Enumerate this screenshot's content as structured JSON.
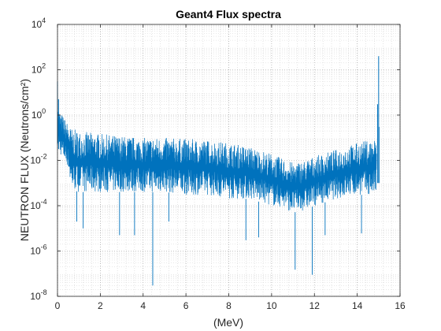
{
  "chart_data": {
    "type": "line",
    "title": "Geant4 Flux spectra",
    "xlabel": "(MeV)",
    "ylabel": "NEUTRON FLUX (Neutrons/cm²)",
    "xlim": [
      0,
      16
    ],
    "ylim": [
      1e-08,
      10000
    ],
    "yscale": "log",
    "grid": "major and minor (dotted)",
    "series_color": "#0072BD",
    "x_ticks": [
      0,
      2,
      4,
      6,
      8,
      10,
      12,
      14,
      16
    ],
    "y_tick_exponents": [
      -8,
      -6,
      -4,
      -2,
      0,
      2,
      4
    ],
    "envelope": {
      "x": [
        0.0,
        0.1,
        0.3,
        0.5,
        0.6,
        0.7,
        1.0,
        2.0,
        3.0,
        4.0,
        5.0,
        6.0,
        7.0,
        8.0,
        9.0,
        10.0,
        10.5,
        11.0,
        11.5,
        12.0,
        13.0,
        14.0,
        14.5,
        14.9
      ],
      "upper": [
        3,
        1.5,
        0.8,
        0.4,
        0.3,
        0.25,
        0.2,
        0.15,
        0.12,
        0.1,
        0.1,
        0.09,
        0.08,
        0.06,
        0.04,
        0.02,
        0.012,
        0.008,
        0.01,
        0.015,
        0.03,
        0.06,
        0.08,
        0.1
      ],
      "lower": [
        0.05,
        0.02,
        0.01,
        0.005,
        0.0008,
        0.0005,
        0.0004,
        0.0004,
        0.0004,
        0.0004,
        0.0004,
        0.0003,
        0.0003,
        0.0002,
        0.0002,
        0.0001,
        8e-05,
        5e-05,
        6e-05,
        0.0001,
        0.0002,
        0.0003,
        0.0003,
        0.0003
      ]
    },
    "peaks": [
      {
        "x": 0.0,
        "y": 30
      },
      {
        "x": 0.05,
        "y": 5
      },
      {
        "x": 14.95,
        "y": 3
      },
      {
        "x": 15.0,
        "y": 400
      },
      {
        "x": 15.02,
        "y": 0.3
      }
    ],
    "dips": [
      {
        "x": 0.9,
        "y": 2e-05
      },
      {
        "x": 1.2,
        "y": 1e-05
      },
      {
        "x": 2.9,
        "y": 5e-06
      },
      {
        "x": 3.6,
        "y": 5e-06
      },
      {
        "x": 4.45,
        "y": 3e-08
      },
      {
        "x": 5.2,
        "y": 2e-05
      },
      {
        "x": 8.8,
        "y": 3e-06
      },
      {
        "x": 9.4,
        "y": 4e-06
      },
      {
        "x": 11.1,
        "y": 1.5e-07
      },
      {
        "x": 11.9,
        "y": 9e-08
      },
      {
        "x": 12.5,
        "y": 5e-06
      },
      {
        "x": 14.2,
        "y": 6e-06
      }
    ]
  }
}
